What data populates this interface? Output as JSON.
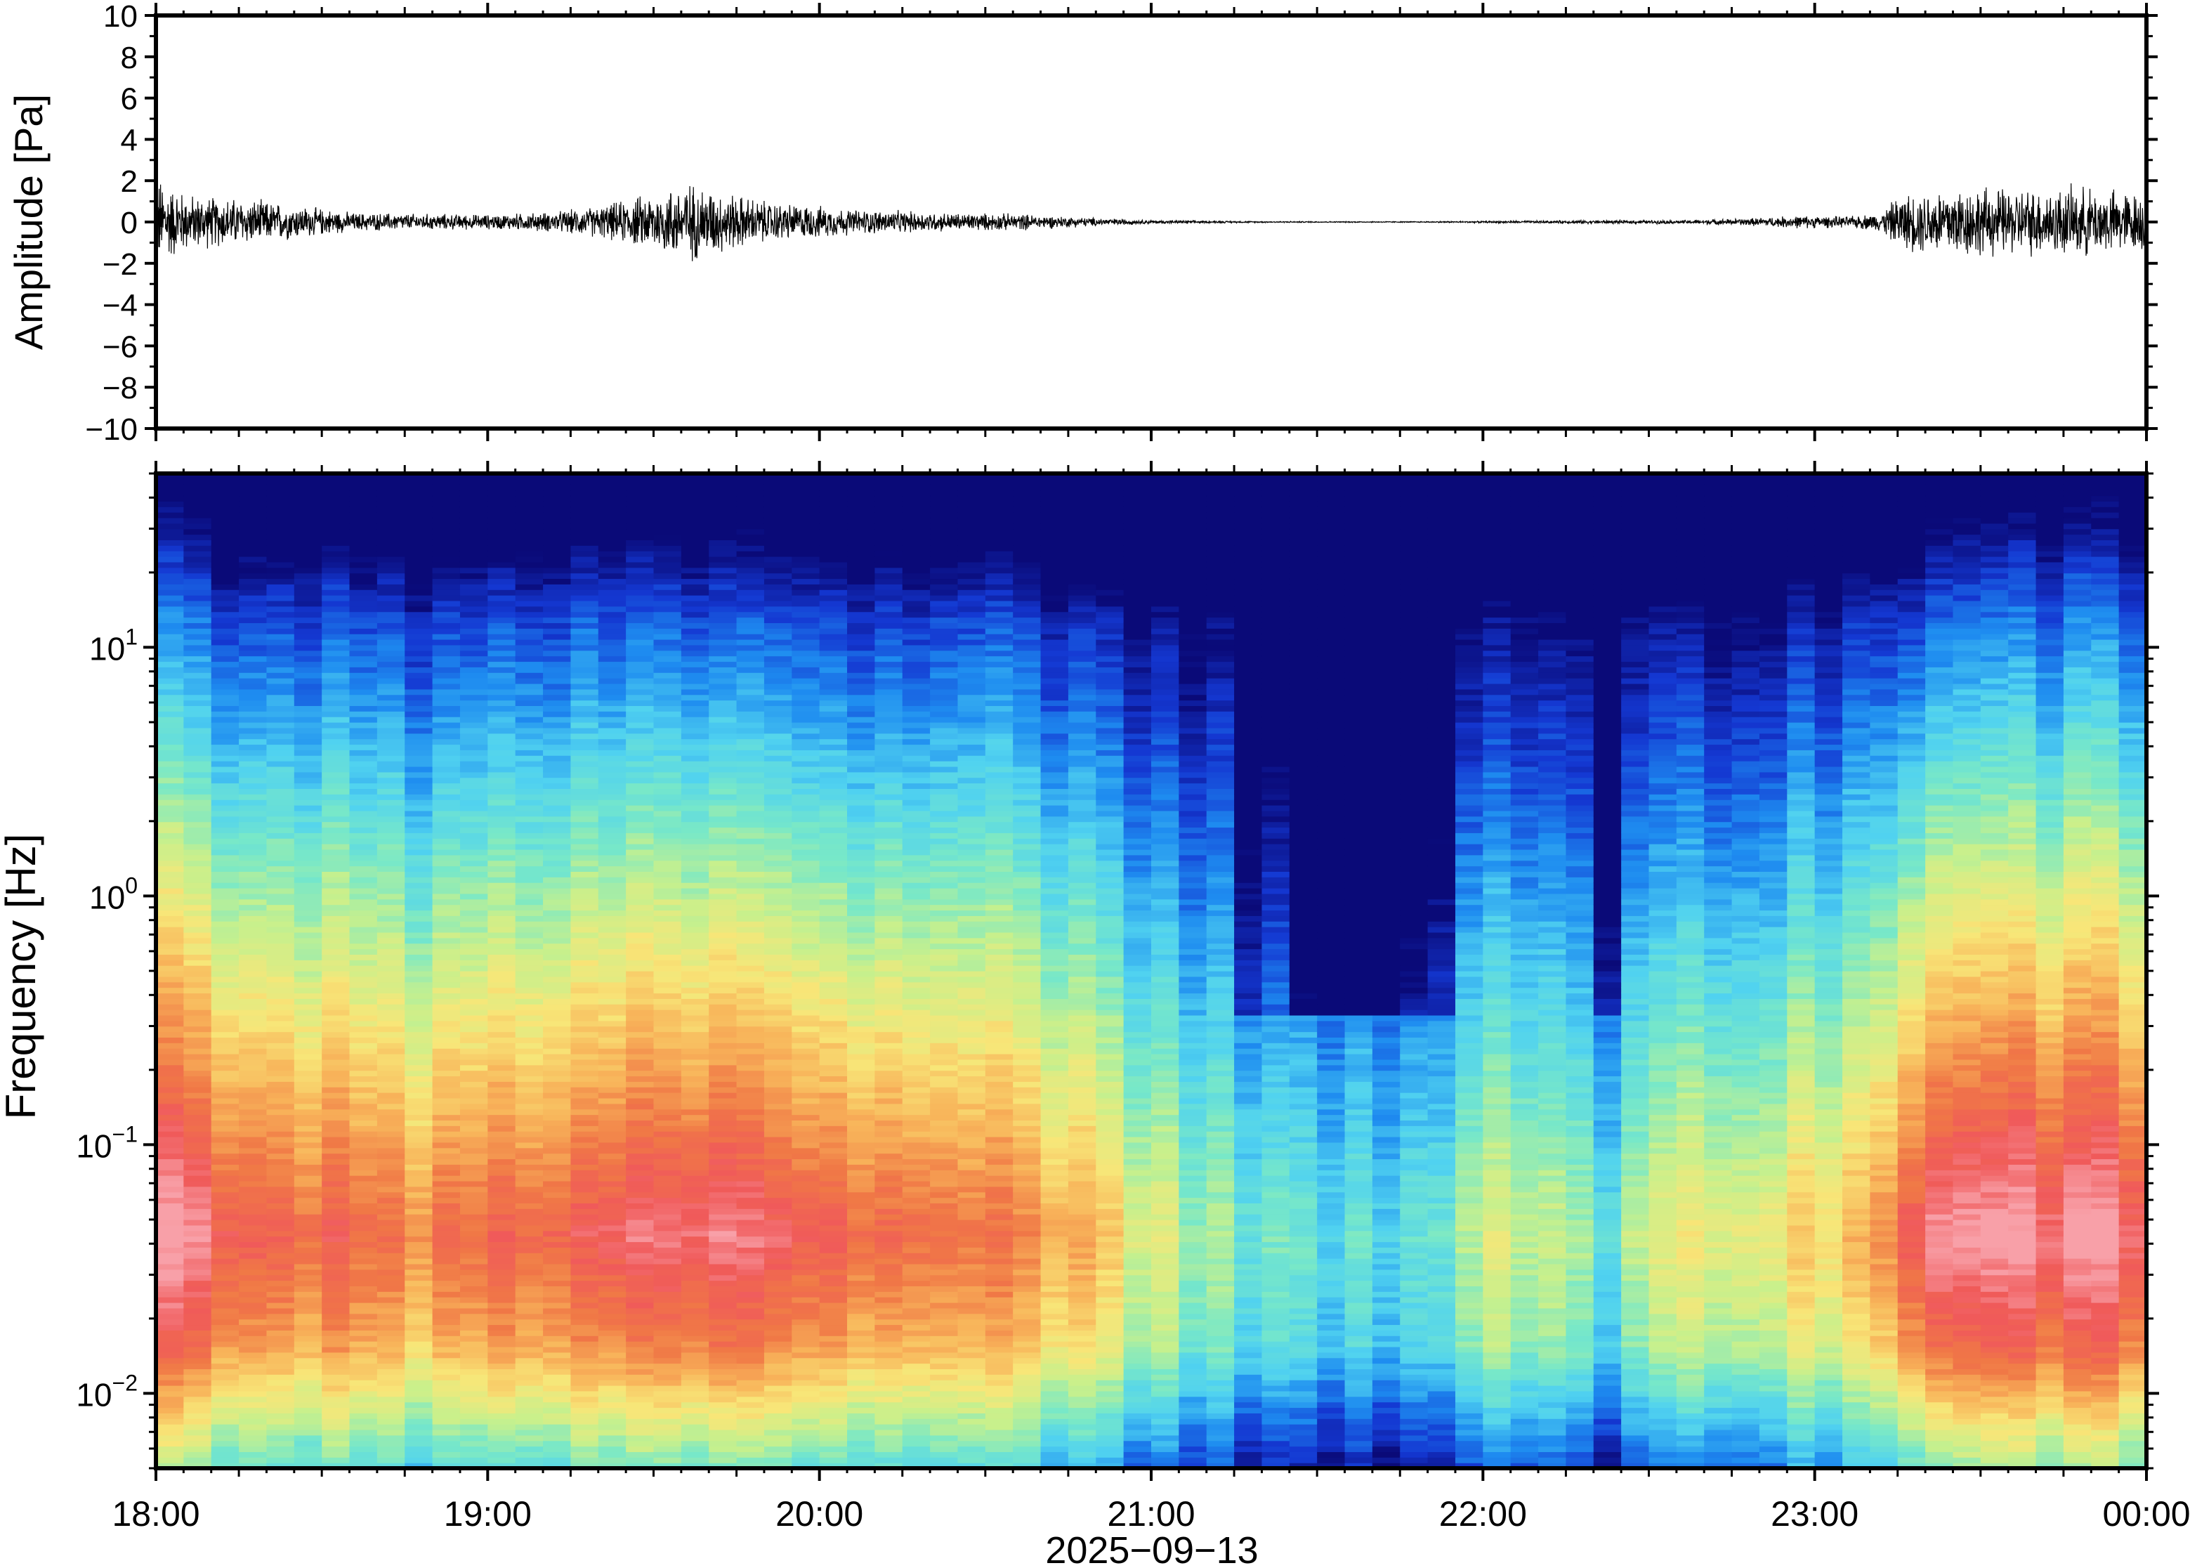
{
  "chart_data": [
    {
      "type": "line",
      "panel": "waveform",
      "ylabel": "Amplitude [Pa]",
      "ylim": [
        -10,
        10
      ],
      "yticks": [
        10,
        8,
        6,
        4,
        2,
        0,
        -2,
        -4,
        -6,
        -8,
        -10
      ],
      "ytick_labels": [
        "10",
        "8",
        "6",
        "4",
        "2",
        "0",
        "−2",
        "−4",
        "−6",
        "−8",
        "−10"
      ],
      "xlim_hours": [
        18,
        24
      ],
      "envelope": {
        "time_hours": [
          18.0,
          18.1,
          18.3,
          18.6,
          19.0,
          19.2,
          19.35,
          19.5,
          19.6,
          19.7,
          19.85,
          20.1,
          20.4,
          20.6,
          20.8,
          21.0,
          21.3,
          21.6,
          21.8,
          22.0,
          22.2,
          22.4,
          22.6,
          22.8,
          22.95,
          23.1,
          23.2,
          23.25,
          23.4,
          23.6,
          23.8,
          24.0
        ],
        "half_range_pa": [
          2.5,
          1.5,
          1.2,
          0.5,
          0.4,
          0.55,
          0.9,
          1.6,
          2.2,
          1.7,
          1.1,
          0.7,
          0.5,
          0.45,
          0.25,
          0.1,
          0.04,
          0.03,
          0.03,
          0.05,
          0.08,
          0.1,
          0.1,
          0.2,
          0.35,
          0.3,
          0.5,
          1.4,
          2.0,
          1.8,
          1.9,
          1.6
        ]
      }
    },
    {
      "type": "heatmap",
      "panel": "spectrogram",
      "ylabel": "Frequency [Hz]",
      "yscale": "log",
      "ylim": [
        0.005,
        50
      ],
      "yticks": [
        0.01,
        0.1,
        1,
        10
      ],
      "ytick_labels": [
        {
          "base": "10",
          "exp": "−2"
        },
        {
          "base": "10",
          "exp": "−1"
        },
        {
          "base": "10",
          "exp": "0"
        },
        {
          "base": "10",
          "exp": "1"
        }
      ],
      "colormap": "rainbow (blue low → red/pink high)",
      "colors": [
        "#0a0a78",
        "#1438d2",
        "#1e8cf0",
        "#50d2f0",
        "#78e8c8",
        "#c8f08c",
        "#f8e678",
        "#f8b45a",
        "#f07846",
        "#f05a5a",
        "#f8a0a8"
      ],
      "xlim_hours": [
        18,
        24
      ],
      "xticks": [
        "18:00",
        "19:00",
        "20:00",
        "21:00",
        "22:00",
        "23:00",
        "00:00"
      ],
      "xlabel": "2025−09−13",
      "activity_profile": {
        "time_hours": [
          18.0,
          18.4,
          18.8,
          19.2,
          19.5,
          19.7,
          19.9,
          20.3,
          20.6,
          20.8,
          21.0,
          21.3,
          21.6,
          21.8,
          22.0,
          22.2,
          22.35,
          22.5,
          22.7,
          22.9,
          23.1,
          23.2,
          23.3,
          23.6,
          24.0
        ],
        "level": [
          0.95,
          0.8,
          0.72,
          0.78,
          0.92,
          0.95,
          0.85,
          0.75,
          0.68,
          0.55,
          0.35,
          0.15,
          0.08,
          0.12,
          0.28,
          0.32,
          0.15,
          0.3,
          0.4,
          0.45,
          0.5,
          0.6,
          0.95,
          1.0,
          0.9
        ]
      }
    }
  ]
}
